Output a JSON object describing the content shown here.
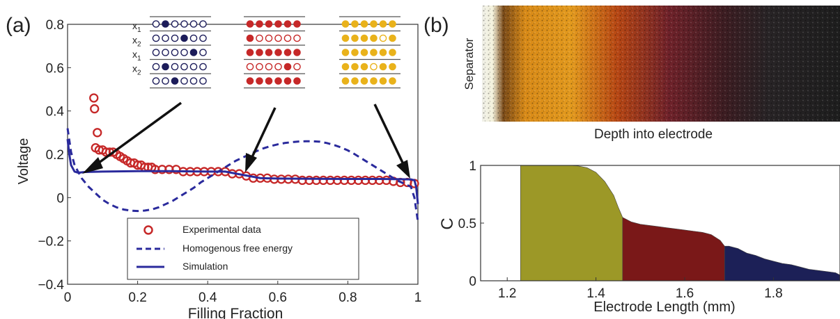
{
  "panel_a_label": "(a)",
  "panel_b_label": "(b)",
  "lattice_row_labels": [
    "x1",
    "x2",
    "x1",
    "x2"
  ],
  "lattice_groups": [
    {
      "color": "#1c1c5a",
      "rows": [
        [
          0,
          1,
          0,
          0,
          0,
          0
        ],
        [
          0,
          0,
          0,
          1,
          0,
          0
        ],
        [
          0,
          0,
          0,
          0,
          1,
          0
        ],
        [
          0,
          1,
          0,
          0,
          0,
          0
        ],
        [
          0,
          0,
          1,
          0,
          0,
          0
        ]
      ]
    },
    {
      "color": "#c62828",
      "rows": [
        [
          1,
          1,
          1,
          1,
          1,
          1
        ],
        [
          1,
          0,
          0,
          0,
          0,
          0
        ],
        [
          1,
          1,
          1,
          1,
          1,
          1
        ],
        [
          0,
          0,
          0,
          0,
          1,
          0
        ],
        [
          1,
          1,
          1,
          1,
          1,
          1
        ]
      ]
    },
    {
      "color": "#e9b21b",
      "rows": [
        [
          1,
          1,
          1,
          1,
          1,
          1
        ],
        [
          1,
          1,
          1,
          1,
          0,
          1
        ],
        [
          1,
          1,
          1,
          1,
          1,
          1
        ],
        [
          1,
          1,
          1,
          0,
          1,
          1
        ],
        [
          1,
          1,
          1,
          1,
          1,
          1
        ]
      ]
    }
  ],
  "image_b": {
    "side_label": "Separator",
    "caption": "Depth into electrode"
  },
  "chart_data": [
    {
      "type": "line",
      "xlabel": "Filling Fraction",
      "ylabel": "Voltage",
      "xlim": [
        0,
        1
      ],
      "ylim": [
        -0.4,
        0.8
      ],
      "xticks": [
        "0",
        "0.2",
        "0.4",
        "0.6",
        "0.8",
        "1"
      ],
      "yticks": [
        "−0.4",
        "−0.2",
        "0",
        "0.2",
        "0.4",
        "0.6",
        "0.8"
      ],
      "legend": [
        "Experimental data",
        "Homogenous free energy",
        "Simulation"
      ],
      "legend_position": "bottom-center",
      "series": [
        {
          "name": "Experimental data",
          "color": "#c62828",
          "marker": "open-circle",
          "x": [
            0.075,
            0.077,
            0.085,
            0.08,
            0.09,
            0.1,
            0.11,
            0.12,
            0.13,
            0.14,
            0.15,
            0.16,
            0.17,
            0.18,
            0.19,
            0.2,
            0.21,
            0.22,
            0.23,
            0.24,
            0.25,
            0.27,
            0.29,
            0.31,
            0.33,
            0.35,
            0.37,
            0.39,
            0.41,
            0.43,
            0.45,
            0.47,
            0.49,
            0.51,
            0.53,
            0.55,
            0.57,
            0.59,
            0.61,
            0.63,
            0.65,
            0.67,
            0.69,
            0.71,
            0.73,
            0.75,
            0.77,
            0.79,
            0.81,
            0.83,
            0.85,
            0.87,
            0.89,
            0.91,
            0.93,
            0.95,
            0.97,
            0.99
          ],
          "y": [
            0.46,
            0.41,
            0.3,
            0.23,
            0.22,
            0.22,
            0.21,
            0.21,
            0.21,
            0.2,
            0.19,
            0.18,
            0.17,
            0.16,
            0.16,
            0.15,
            0.15,
            0.14,
            0.14,
            0.14,
            0.13,
            0.13,
            0.13,
            0.13,
            0.12,
            0.12,
            0.12,
            0.12,
            0.12,
            0.12,
            0.12,
            0.11,
            0.11,
            0.1,
            0.09,
            0.09,
            0.09,
            0.085,
            0.085,
            0.085,
            0.085,
            0.08,
            0.08,
            0.08,
            0.08,
            0.08,
            0.08,
            0.08,
            0.08,
            0.08,
            0.08,
            0.08,
            0.08,
            0.08,
            0.075,
            0.07,
            0.07,
            0.065
          ]
        },
        {
          "name": "Homogenous free energy",
          "color": "#2a2a9c",
          "style": "dashed",
          "x": [
            0,
            0.01,
            0.02,
            0.04,
            0.06,
            0.08,
            0.1,
            0.12,
            0.14,
            0.16,
            0.18,
            0.2,
            0.22,
            0.24,
            0.26,
            0.28,
            0.3,
            0.32,
            0.34,
            0.36,
            0.38,
            0.4,
            0.42,
            0.44,
            0.46,
            0.48,
            0.5,
            0.52,
            0.54,
            0.56,
            0.58,
            0.6,
            0.62,
            0.64,
            0.66,
            0.68,
            0.7,
            0.72,
            0.74,
            0.76,
            0.78,
            0.8,
            0.82,
            0.84,
            0.86,
            0.88,
            0.9,
            0.92,
            0.94,
            0.96,
            0.98,
            0.99,
            1.0
          ],
          "y": [
            0.32,
            0.21,
            0.15,
            0.09,
            0.05,
            0.02,
            -0.01,
            -0.03,
            -0.045,
            -0.055,
            -0.06,
            -0.062,
            -0.06,
            -0.055,
            -0.045,
            -0.03,
            -0.015,
            0.005,
            0.025,
            0.045,
            0.07,
            0.09,
            0.11,
            0.13,
            0.15,
            0.17,
            0.185,
            0.2,
            0.215,
            0.228,
            0.238,
            0.246,
            0.252,
            0.256,
            0.259,
            0.26,
            0.26,
            0.258,
            0.252,
            0.243,
            0.232,
            0.218,
            0.2,
            0.18,
            0.16,
            0.14,
            0.12,
            0.1,
            0.08,
            0.065,
            0.05,
            0.0,
            -0.11
          ]
        },
        {
          "name": "Simulation",
          "color": "#2a2a9c",
          "style": "solid",
          "x": [
            0,
            0.005,
            0.01,
            0.02,
            0.03,
            0.05,
            0.1,
            0.2,
            0.3,
            0.4,
            0.45,
            0.5,
            0.55,
            0.6,
            0.7,
            0.8,
            0.9,
            0.95,
            0.98,
            0.99,
            0.995,
            1.0
          ],
          "y": [
            0.27,
            0.2,
            0.15,
            0.12,
            0.115,
            0.118,
            0.12,
            0.122,
            0.122,
            0.12,
            0.12,
            0.105,
            0.09,
            0.088,
            0.087,
            0.086,
            0.086,
            0.085,
            0.084,
            0.08,
            0.05,
            -0.03
          ]
        }
      ]
    },
    {
      "type": "area",
      "xlabel": "Electrode Length (mm)",
      "ylabel": "C",
      "xlim": [
        1.14,
        1.95
      ],
      "ylim": [
        0,
        1
      ],
      "xticks": [
        "1.2",
        "1.4",
        "1.6",
        "1.8"
      ],
      "yticks": [
        "0",
        "0.5",
        "1"
      ],
      "regions": [
        {
          "color": "#9c9827",
          "x": [
            1.23,
            1.26,
            1.3,
            1.34,
            1.36,
            1.38,
            1.4,
            1.42,
            1.44,
            1.45,
            1.46
          ],
          "y": [
            1,
            1,
            1,
            1,
            0.995,
            0.98,
            0.94,
            0.86,
            0.74,
            0.64,
            0.55
          ]
        },
        {
          "color": "#7a1818",
          "x": [
            1.46,
            1.48,
            1.5,
            1.52,
            1.54,
            1.56,
            1.58,
            1.6,
            1.62,
            1.64,
            1.66,
            1.68,
            1.69
          ],
          "y": [
            0.55,
            0.51,
            0.49,
            0.48,
            0.47,
            0.46,
            0.45,
            0.44,
            0.43,
            0.42,
            0.4,
            0.35,
            0.3
          ]
        },
        {
          "color": "#1c2057",
          "x": [
            1.69,
            1.7,
            1.72,
            1.74,
            1.76,
            1.78,
            1.8,
            1.82,
            1.84,
            1.86,
            1.88,
            1.9,
            1.92,
            1.94,
            1.95
          ],
          "y": [
            0.3,
            0.3,
            0.28,
            0.24,
            0.22,
            0.19,
            0.17,
            0.15,
            0.14,
            0.12,
            0.1,
            0.09,
            0.08,
            0.07,
            0.05
          ]
        }
      ]
    }
  ]
}
